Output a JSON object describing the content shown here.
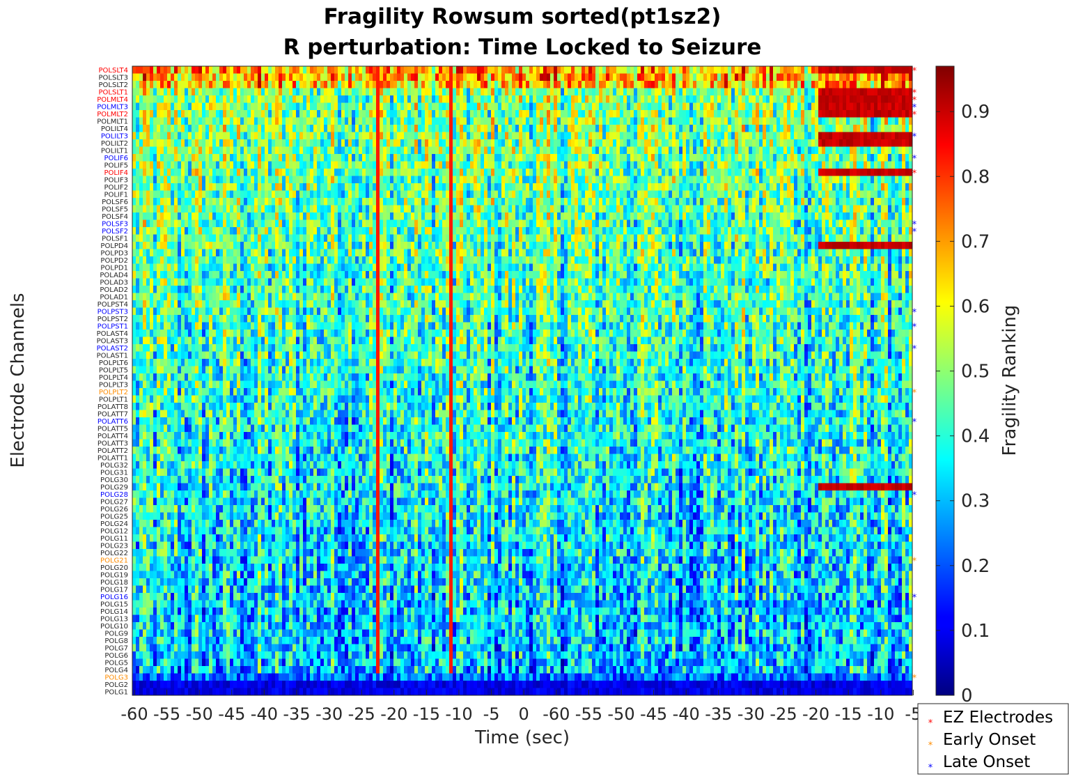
{
  "chart_data": {
    "type": "heatmap",
    "title": "Fragility Rowsum sorted(pt1sz2)",
    "subtitle": "R perturbation:  Time Locked to Seizure",
    "xlabel": "Time (sec)",
    "ylabel": "Electrode Channels",
    "colorbar_label": "Fragility Ranking",
    "colormap": "jet",
    "colorbar_range": [
      0,
      0.97
    ],
    "colorbar_ticks": [
      "0",
      "0.1",
      "0.2",
      "0.3",
      "0.4",
      "0.5",
      "0.6",
      "0.7",
      "0.8",
      "0.9"
    ],
    "x_tick_labels": [
      "-60",
      "-55",
      "-50",
      "-45",
      "-40",
      "-35",
      "-30",
      "-25",
      "-20",
      "-15",
      "-10",
      "-5",
      "0",
      "-60",
      "-55",
      "-50",
      "-45",
      "-40",
      "-35",
      "-30",
      "-25",
      "-20",
      "-15",
      "-10",
      "-5"
    ],
    "channels": [
      {
        "name": "POLSLT4",
        "group": "ez"
      },
      {
        "name": "POLSLT3",
        "group": "none"
      },
      {
        "name": "POLSLT2",
        "group": "none"
      },
      {
        "name": "POLSLT1",
        "group": "ez"
      },
      {
        "name": "POLMLT4",
        "group": "ez"
      },
      {
        "name": "POLMLT3",
        "group": "late"
      },
      {
        "name": "POLMLT2",
        "group": "ez"
      },
      {
        "name": "POLMLT1",
        "group": "none"
      },
      {
        "name": "POLILT4",
        "group": "none"
      },
      {
        "name": "POLILT3",
        "group": "late"
      },
      {
        "name": "POLILT2",
        "group": "none"
      },
      {
        "name": "POLILT1",
        "group": "none"
      },
      {
        "name": "POLIF6",
        "group": "late"
      },
      {
        "name": "POLIF5",
        "group": "none"
      },
      {
        "name": "POLIF4",
        "group": "ez"
      },
      {
        "name": "POLIF3",
        "group": "none"
      },
      {
        "name": "POLIF2",
        "group": "none"
      },
      {
        "name": "POLIF1",
        "group": "none"
      },
      {
        "name": "POLSF6",
        "group": "none"
      },
      {
        "name": "POLSF5",
        "group": "none"
      },
      {
        "name": "POLSF4",
        "group": "none"
      },
      {
        "name": "POLSF3",
        "group": "late"
      },
      {
        "name": "POLSF2",
        "group": "late"
      },
      {
        "name": "POLSF1",
        "group": "none"
      },
      {
        "name": "POLPD4",
        "group": "none"
      },
      {
        "name": "POLPD3",
        "group": "none"
      },
      {
        "name": "POLPD2",
        "group": "none"
      },
      {
        "name": "POLPD1",
        "group": "none"
      },
      {
        "name": "POLAD4",
        "group": "none"
      },
      {
        "name": "POLAD3",
        "group": "none"
      },
      {
        "name": "POLAD2",
        "group": "none"
      },
      {
        "name": "POLAD1",
        "group": "none"
      },
      {
        "name": "POLPST4",
        "group": "none"
      },
      {
        "name": "POLPST3",
        "group": "late"
      },
      {
        "name": "POLPST2",
        "group": "none"
      },
      {
        "name": "POLPST1",
        "group": "late"
      },
      {
        "name": "POLAST4",
        "group": "none"
      },
      {
        "name": "POLAST3",
        "group": "none"
      },
      {
        "name": "POLAST2",
        "group": "late"
      },
      {
        "name": "POLAST1",
        "group": "none"
      },
      {
        "name": "POLPLT6",
        "group": "none"
      },
      {
        "name": "POLPLT5",
        "group": "none"
      },
      {
        "name": "POLPLT4",
        "group": "none"
      },
      {
        "name": "POLPLT3",
        "group": "none"
      },
      {
        "name": "POLPLT2",
        "group": "early"
      },
      {
        "name": "POLPLT1",
        "group": "none"
      },
      {
        "name": "POLATT8",
        "group": "none"
      },
      {
        "name": "POLATT7",
        "group": "none"
      },
      {
        "name": "POLATT6",
        "group": "late"
      },
      {
        "name": "POLATT5",
        "group": "none"
      },
      {
        "name": "POLATT4",
        "group": "none"
      },
      {
        "name": "POLATT3",
        "group": "none"
      },
      {
        "name": "POLATT2",
        "group": "none"
      },
      {
        "name": "POLATT1",
        "group": "none"
      },
      {
        "name": "POLG32",
        "group": "none"
      },
      {
        "name": "POLG31",
        "group": "none"
      },
      {
        "name": "POLG30",
        "group": "none"
      },
      {
        "name": "POLG29",
        "group": "none"
      },
      {
        "name": "POLG28",
        "group": "late"
      },
      {
        "name": "POLG27",
        "group": "none"
      },
      {
        "name": "POLG26",
        "group": "none"
      },
      {
        "name": "POLG25",
        "group": "none"
      },
      {
        "name": "POLG24",
        "group": "none"
      },
      {
        "name": "POLG12",
        "group": "none"
      },
      {
        "name": "POLG11",
        "group": "none"
      },
      {
        "name": "POLG23",
        "group": "none"
      },
      {
        "name": "POLG22",
        "group": "none"
      },
      {
        "name": "POLG21",
        "group": "early"
      },
      {
        "name": "POLG20",
        "group": "none"
      },
      {
        "name": "POLG19",
        "group": "none"
      },
      {
        "name": "POLG18",
        "group": "none"
      },
      {
        "name": "POLG17",
        "group": "none"
      },
      {
        "name": "POLG16",
        "group": "late"
      },
      {
        "name": "POLG15",
        "group": "none"
      },
      {
        "name": "POLG14",
        "group": "none"
      },
      {
        "name": "POLG13",
        "group": "none"
      },
      {
        "name": "POLG10",
        "group": "none"
      },
      {
        "name": "POLG9",
        "group": "none"
      },
      {
        "name": "POLG8",
        "group": "none"
      },
      {
        "name": "POLG7",
        "group": "none"
      },
      {
        "name": "POLG6",
        "group": "none"
      },
      {
        "name": "POLG5",
        "group": "none"
      },
      {
        "name": "POLG4",
        "group": "none"
      },
      {
        "name": "POLG3",
        "group": "early"
      },
      {
        "name": "POLG2",
        "group": "none"
      },
      {
        "name": "POLG1",
        "group": "none"
      }
    ],
    "group_colors": {
      "ez": "#ff0000",
      "early": "#ff8c00",
      "late": "#0000ff",
      "none": "#262626"
    },
    "legend": {
      "placement": "bottom-right",
      "entries": [
        {
          "label": "EZ Electrodes",
          "group": "ez"
        },
        {
          "label": "Early Onset",
          "group": "early"
        },
        {
          "label": "Late Onset",
          "group": "late"
        }
      ]
    },
    "grid": false
  }
}
